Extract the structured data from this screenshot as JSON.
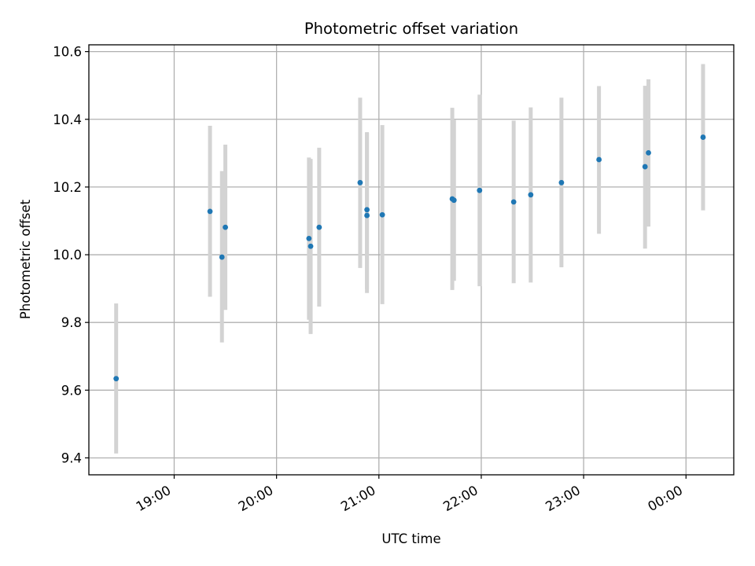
{
  "chart_data": {
    "type": "scatter",
    "title": "Photometric offset variation",
    "xlabel": "UTC time",
    "ylabel": "Photometric offset",
    "x_axis_kind": "time",
    "xlim": [
      "18:10",
      "00:28"
    ],
    "ylim": [
      9.35,
      10.62
    ],
    "x_ticks": [
      "19:00",
      "20:00",
      "21:00",
      "22:00",
      "23:00",
      "00:00"
    ],
    "y_ticks": [
      9.4,
      9.6,
      9.8,
      10.0,
      10.2,
      10.4,
      10.6
    ],
    "y_tick_labels": [
      "9.4",
      "9.6",
      "9.8",
      "10.0",
      "10.2",
      "10.4",
      "10.6"
    ],
    "grid": true,
    "marker_color": "#1f77b4",
    "errorbar_color": "#d3d3d3",
    "points": [
      {
        "time": "18:26",
        "y": 9.634,
        "ylo": 9.413,
        "yhi": 9.856
      },
      {
        "time": "19:21",
        "y": 10.128,
        "ylo": 9.876,
        "yhi": 10.381
      },
      {
        "time": "19:28",
        "y": 9.993,
        "ylo": 9.741,
        "yhi": 10.247
      },
      {
        "time": "19:30",
        "y": 10.081,
        "ylo": 9.837,
        "yhi": 10.325
      },
      {
        "time": "20:19",
        "y": 10.048,
        "ylo": 9.808,
        "yhi": 10.287
      },
      {
        "time": "20:20",
        "y": 10.025,
        "ylo": 9.766,
        "yhi": 10.283
      },
      {
        "time": "20:25",
        "y": 10.081,
        "ylo": 9.847,
        "yhi": 10.316
      },
      {
        "time": "20:49",
        "y": 10.213,
        "ylo": 9.961,
        "yhi": 10.464
      },
      {
        "time": "20:53",
        "y": 10.133,
        "ylo": 9.887,
        "yhi": 10.362
      },
      {
        "time": "20:53",
        "y": 10.116,
        "ylo": 9.899,
        "yhi": 10.36
      },
      {
        "time": "21:02",
        "y": 10.118,
        "ylo": 9.854,
        "yhi": 10.383
      },
      {
        "time": "21:43",
        "y": 10.165,
        "ylo": 9.896,
        "yhi": 10.434
      },
      {
        "time": "21:44",
        "y": 10.161,
        "ylo": 9.923,
        "yhi": 10.398
      },
      {
        "time": "21:59",
        "y": 10.19,
        "ylo": 9.907,
        "yhi": 10.473
      },
      {
        "time": "22:19",
        "y": 10.156,
        "ylo": 9.916,
        "yhi": 10.396
      },
      {
        "time": "22:29",
        "y": 10.177,
        "ylo": 9.918,
        "yhi": 10.435
      },
      {
        "time": "22:47",
        "y": 10.213,
        "ylo": 9.963,
        "yhi": 10.464
      },
      {
        "time": "23:09",
        "y": 10.281,
        "ylo": 10.062,
        "yhi": 10.498
      },
      {
        "time": "23:36",
        "y": 10.26,
        "ylo": 10.018,
        "yhi": 10.499
      },
      {
        "time": "23:38",
        "y": 10.301,
        "ylo": 10.083,
        "yhi": 10.518
      },
      {
        "time": "00:10",
        "y": 10.347,
        "ylo": 10.131,
        "yhi": 10.563
      }
    ]
  }
}
